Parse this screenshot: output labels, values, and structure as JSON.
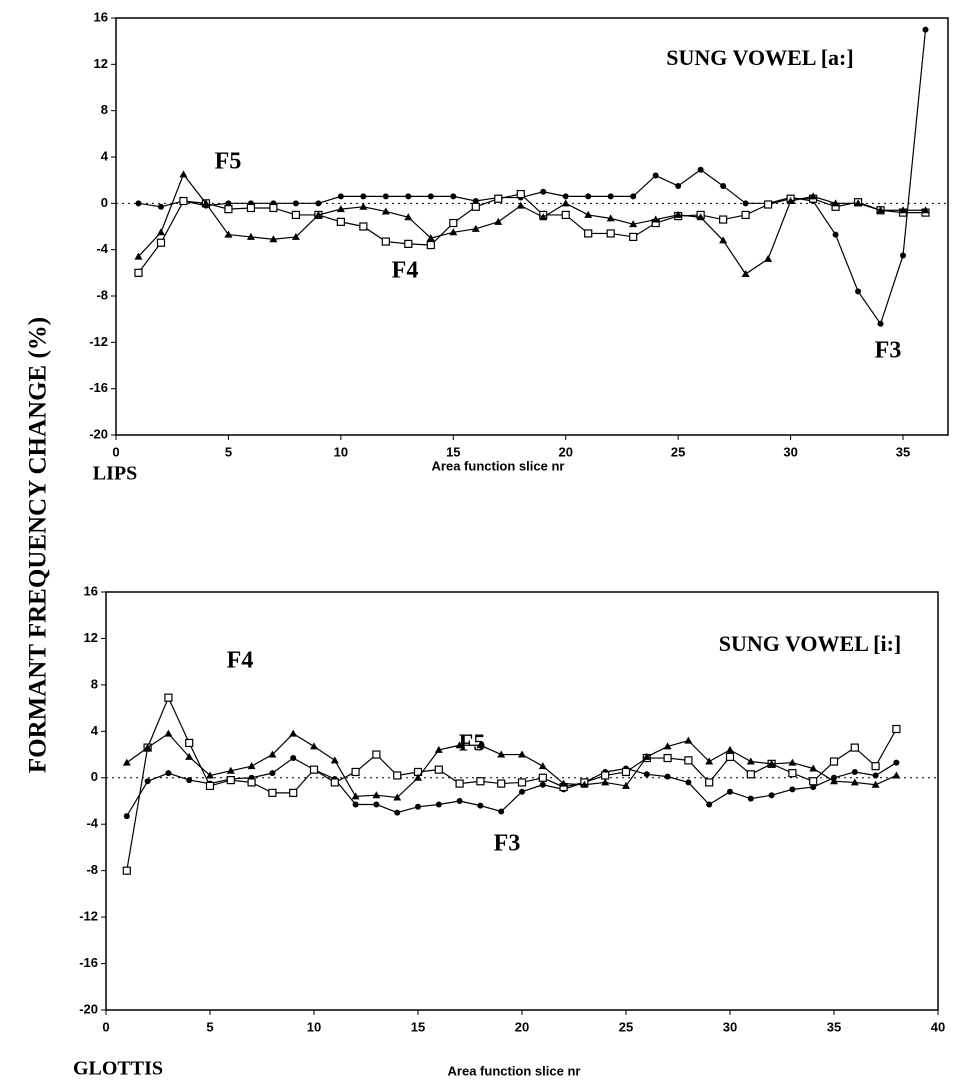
{
  "ylabel": "FORMANT FREQUENCY CHANGE (%)",
  "chart_data": [
    {
      "type": "line",
      "title": "SUNG VOWEL [a:]",
      "xlabel": "Area function slice nr",
      "x_start_label": "LIPS",
      "xlim": [
        0,
        37
      ],
      "xticks": [
        0,
        5,
        10,
        15,
        20,
        25,
        30,
        35
      ],
      "ylim": [
        -20,
        16
      ],
      "yticks": [
        -20,
        -16,
        -12,
        -8,
        -4,
        0,
        4,
        8,
        12,
        16
      ],
      "zero_line": true,
      "x": [
        1,
        2,
        3,
        4,
        5,
        6,
        7,
        8,
        9,
        10,
        11,
        12,
        13,
        14,
        15,
        16,
        17,
        18,
        19,
        20,
        21,
        22,
        23,
        24,
        25,
        26,
        27,
        28,
        29,
        30,
        31,
        32,
        33,
        34,
        35,
        36
      ],
      "series": [
        {
          "name": "F3",
          "color": "#000000",
          "marker": "circle",
          "values": [
            0,
            -0.3,
            0.2,
            -0.2,
            0,
            0,
            0,
            0,
            0,
            0.6,
            0.6,
            0.6,
            0.6,
            0.6,
            0.6,
            0.2,
            0.5,
            0.5,
            1,
            0.6,
            0.6,
            0.6,
            0.6,
            2.4,
            1.5,
            2.9,
            1.5,
            0,
            0,
            0.5,
            0.2,
            -2.7,
            -7.6,
            -10.4,
            -4.5,
            15
          ]
        },
        {
          "name": "F4",
          "color": "#000000",
          "marker": "square",
          "values": [
            -6,
            -3.4,
            0.2,
            0,
            -0.5,
            -0.4,
            -0.4,
            -1,
            -1,
            -1.6,
            -2,
            -3.3,
            -3.5,
            -3.6,
            -1.7,
            -0.3,
            0.4,
            0.8,
            -1,
            -1,
            -2.6,
            -2.6,
            -2.9,
            -1.7,
            -1.1,
            -1,
            -1.4,
            -1,
            -0.1,
            0.4,
            0.4,
            -0.3,
            0.1,
            -0.6,
            -0.8,
            -0.8
          ]
        },
        {
          "name": "F5",
          "color": "#000000",
          "marker": "triangle",
          "values": [
            -4.6,
            -2.5,
            2.5,
            0,
            -2.7,
            -2.9,
            -3.1,
            -2.9,
            -1,
            -0.5,
            -0.3,
            -0.7,
            -1.2,
            -3,
            -2.5,
            -2.2,
            -1.6,
            -0.2,
            -1.2,
            0,
            -1,
            -1.3,
            -1.8,
            -1.4,
            -1,
            -1.2,
            -3.2,
            -6.1,
            -4.8,
            0.2,
            0.6,
            0,
            0,
            -0.6,
            -0.6,
            -0.6
          ]
        }
      ]
    },
    {
      "type": "line",
      "title": "SUNG VOWEL [i:]",
      "xlabel": "Area function slice nr",
      "x_start_label": "GLOTTIS",
      "xlim": [
        0,
        40
      ],
      "xticks": [
        0,
        5,
        10,
        15,
        20,
        25,
        30,
        35,
        40
      ],
      "ylim": [
        -20,
        16
      ],
      "yticks": [
        -20,
        -16,
        -12,
        -8,
        -4,
        0,
        4,
        8,
        12,
        16
      ],
      "zero_line": true,
      "x": [
        1,
        2,
        3,
        4,
        5,
        6,
        7,
        8,
        9,
        10,
        11,
        12,
        13,
        14,
        15,
        16,
        17,
        18,
        19,
        20,
        21,
        22,
        23,
        24,
        25,
        26,
        27,
        28,
        29,
        30,
        31,
        32,
        33,
        34,
        35,
        36,
        37,
        38
      ],
      "series": [
        {
          "name": "F3",
          "color": "#000000",
          "marker": "circle",
          "values": [
            -3.3,
            -0.3,
            0.4,
            -0.2,
            -0.5,
            -0.1,
            0,
            0.4,
            1.7,
            0.7,
            -0.1,
            -2.3,
            -2.3,
            -3,
            -2.5,
            -2.3,
            -2,
            -2.4,
            -2.9,
            -1.2,
            -0.6,
            -1,
            -0.4,
            0.5,
            0.8,
            0.3,
            0.1,
            -0.4,
            -2.3,
            -1.2,
            -1.8,
            -1.5,
            -1,
            -0.8,
            0,
            0.5,
            0.2,
            1.3
          ]
        },
        {
          "name": "F4",
          "color": "#000000",
          "marker": "square",
          "values": [
            -8,
            2.6,
            6.9,
            3,
            -0.7,
            -0.2,
            -0.4,
            -1.3,
            -1.3,
            0.7,
            -0.4,
            0.5,
            2,
            0.2,
            0.5,
            0.7,
            -0.5,
            -0.3,
            -0.5,
            -0.4,
            0,
            -0.8,
            -0.4,
            0.2,
            0.5,
            1.7,
            1.7,
            1.5,
            -0.4,
            1.8,
            0.3,
            1.2,
            0.4,
            -0.3,
            1.4,
            2.6,
            1,
            4.2
          ]
        },
        {
          "name": "F5",
          "color": "#000000",
          "marker": "triangle",
          "values": [
            1.3,
            2.6,
            3.8,
            1.8,
            0.2,
            0.6,
            1,
            2,
            3.8,
            2.7,
            1.5,
            -1.6,
            -1.5,
            -1.7,
            0,
            2.4,
            2.8,
            2.8,
            2,
            2,
            1,
            -0.5,
            -0.6,
            -0.4,
            -0.7,
            1.8,
            2.7,
            3.2,
            1.4,
            2.4,
            1.4,
            1.2,
            1.3,
            0.8,
            -0.3,
            -0.4,
            -0.6,
            0.2
          ]
        }
      ]
    }
  ]
}
